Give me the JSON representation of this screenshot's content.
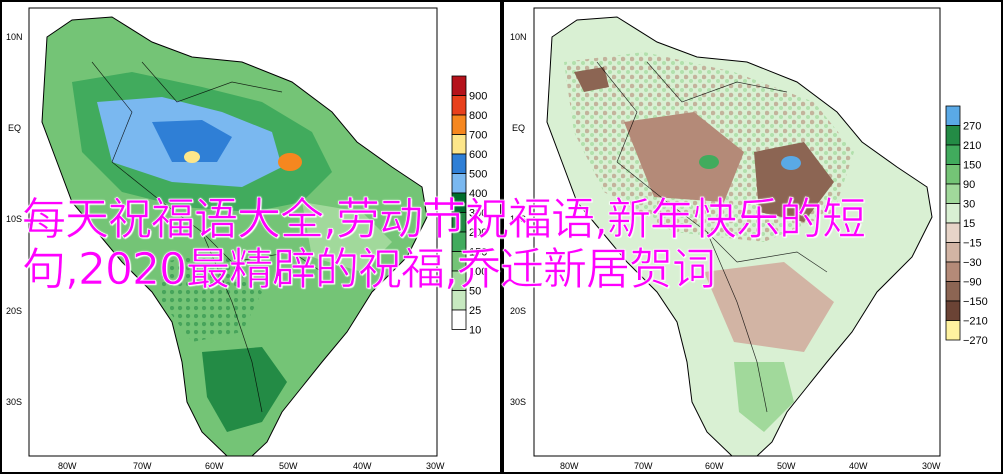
{
  "headline": "每天祝福语大全,劳动节祝福语,新年快乐的短句,2020最精辟的祝福,乔迁新居贺词",
  "maps": [
    {
      "id": "left",
      "lat_ticks": [
        "10N",
        "EQ",
        "10S",
        "20S",
        "30S"
      ],
      "lon_ticks": [
        "80W",
        "70W",
        "60W",
        "50W",
        "40W",
        "30W"
      ],
      "legend": {
        "labels": [
          "900",
          "800",
          "700",
          "600",
          "500",
          "400",
          "300",
          "200",
          "150",
          "100",
          "50",
          "25",
          "10"
        ],
        "colors": [
          "#b5121b",
          "#e8401c",
          "#f6871f",
          "#fde68a",
          "#2f7fd6",
          "#7ab8f0",
          "#006d2c",
          "#238b45",
          "#41ab5d",
          "#74c476",
          "#a1d99b",
          "#c7e9c0",
          "#ffffff"
        ]
      }
    },
    {
      "id": "right",
      "lat_ticks": [
        "10N",
        "EQ",
        "10S",
        "20S",
        "30S"
      ],
      "lon_ticks": [
        "80W",
        "70W",
        "60W",
        "50W",
        "40W",
        "30W"
      ],
      "legend": {
        "labels": [
          "270",
          "210",
          "150",
          "90",
          "30",
          "15",
          "−15",
          "−30",
          "−90",
          "−150",
          "−210",
          "−270"
        ],
        "colors": [
          "#5aa9e6",
          "#238b45",
          "#41ab5d",
          "#74c476",
          "#a1d99b",
          "#d9f0d3",
          "#e7d4c8",
          "#d2b4a4",
          "#b48a78",
          "#8c6553",
          "#6b4335",
          "#fff3a0"
        ]
      }
    }
  ]
}
